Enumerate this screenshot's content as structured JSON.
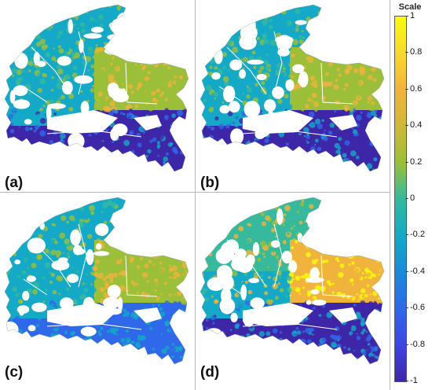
{
  "panels": [
    {
      "id": "a",
      "label": "(a)"
    },
    {
      "id": "b",
      "label": "(b)"
    },
    {
      "id": "c",
      "label": "(c)"
    },
    {
      "id": "d",
      "label": "(d)"
    }
  ],
  "colorbar": {
    "title": "Scale",
    "min": -1,
    "max": 1,
    "ticks": [
      "1",
      "0.8",
      "0.6",
      "0.4",
      "0.2",
      "0",
      "-0.2",
      "-0.4",
      "-0.6",
      "-0.8",
      "-1"
    ],
    "colors": [
      "#3e26a8",
      "#2f68e8",
      "#14a9c6",
      "#36b99c",
      "#9cbf3a",
      "#f0b43c",
      "#f9fb0e"
    ]
  }
}
